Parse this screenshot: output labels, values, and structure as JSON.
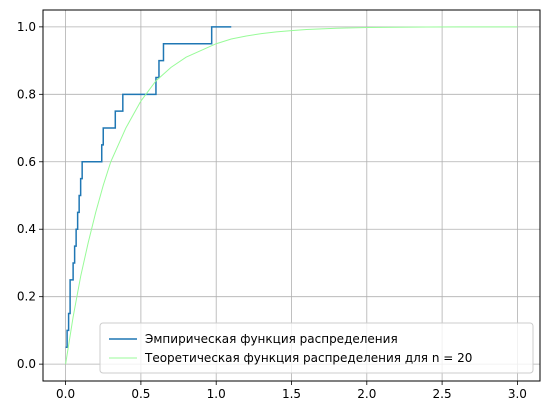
{
  "chart_data": {
    "type": "line",
    "title": "",
    "xlabel": "",
    "ylabel": "",
    "xlim": [
      -0.15,
      3.15
    ],
    "ylim": [
      -0.05,
      1.05
    ],
    "xticks": [
      0.0,
      0.5,
      1.0,
      1.5,
      2.0,
      2.5,
      3.0
    ],
    "xtick_labels": [
      "0.0",
      "0.5",
      "1.0",
      "1.5",
      "2.0",
      "2.5",
      "3.0"
    ],
    "yticks": [
      0.0,
      0.2,
      0.4,
      0.6,
      0.8,
      1.0
    ],
    "ytick_labels": [
      "0.0",
      "0.2",
      "0.4",
      "0.6",
      "0.8",
      "1.0"
    ],
    "grid": true,
    "legend_position": "lower-right",
    "series": [
      {
        "name": "Эмпирическая функция распределения",
        "kind": "step",
        "color": "#1f77b4",
        "x": [
          0.0,
          0.01,
          0.02,
          0.03,
          0.05,
          0.06,
          0.07,
          0.08,
          0.09,
          0.1,
          0.11,
          0.12,
          0.24,
          0.25,
          0.33,
          0.38,
          0.6,
          0.62,
          0.65,
          0.97,
          1.1
        ],
        "y": [
          0.05,
          0.1,
          0.15,
          0.25,
          0.3,
          0.35,
          0.4,
          0.45,
          0.5,
          0.55,
          0.6,
          0.6,
          0.65,
          0.7,
          0.75,
          0.8,
          0.85,
          0.9,
          0.95,
          1.0,
          1.0
        ]
      },
      {
        "name": "Теоретическая функция распределения для n = 20",
        "kind": "line",
        "color": "#98fb98",
        "x": [
          0.0,
          0.05,
          0.1,
          0.15,
          0.2,
          0.25,
          0.3,
          0.35,
          0.4,
          0.45,
          0.5,
          0.6,
          0.7,
          0.8,
          0.9,
          1.0,
          1.1,
          1.2,
          1.3,
          1.4,
          1.5,
          1.6,
          1.8,
          2.0,
          2.2,
          2.4,
          2.6,
          2.8,
          3.0
        ],
        "y": [
          0.0,
          0.14,
          0.26,
          0.36,
          0.45,
          0.53,
          0.6,
          0.65,
          0.7,
          0.74,
          0.78,
          0.84,
          0.88,
          0.91,
          0.93,
          0.95,
          0.964,
          0.973,
          0.98,
          0.985,
          0.989,
          0.992,
          0.996,
          0.998,
          0.999,
          0.9995,
          0.9998,
          0.9999,
          1.0
        ]
      }
    ]
  }
}
